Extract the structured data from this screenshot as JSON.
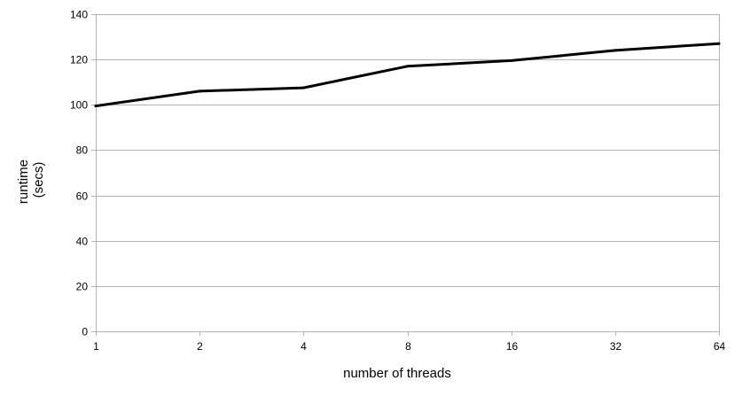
{
  "chart_data": {
    "type": "line",
    "title": "",
    "xlabel": "number of threads",
    "ylabel_lines": [
      "runtime",
      "(secs)"
    ],
    "x": [
      "1",
      "2",
      "4",
      "8",
      "16",
      "32",
      "64"
    ],
    "series": [
      {
        "values": [
          99.5,
          106,
          107.5,
          117,
          119.5,
          124,
          127
        ],
        "color": "#000000"
      }
    ],
    "ylim": [
      0,
      140
    ],
    "yticks": [
      "0",
      "20",
      "40",
      "60",
      "80",
      "100",
      "120",
      "140"
    ],
    "grid": true
  }
}
